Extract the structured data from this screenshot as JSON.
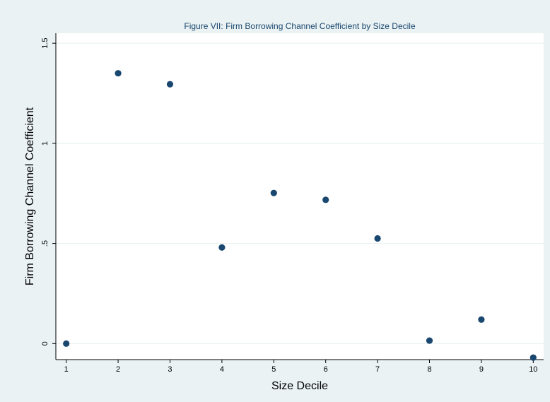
{
  "chart_data": {
    "type": "scatter",
    "title": "Figure VII: Firm Borrowing Channel Coefficient by Size Decile",
    "xlabel": "Size Decile",
    "ylabel": "Firm Borrowing Channel Coefficient",
    "xlim": [
      0.8,
      10.2
    ],
    "ylim": [
      -0.08,
      1.55
    ],
    "xticks": [
      1,
      2,
      3,
      4,
      5,
      6,
      7,
      8,
      9,
      10
    ],
    "xtick_labels": [
      "1",
      "2",
      "3",
      "4",
      "5",
      "6",
      "7",
      "8",
      "9",
      "10"
    ],
    "yticks": [
      0,
      0.5,
      1,
      1.5
    ],
    "ytick_labels": [
      "0",
      ".5",
      "1",
      "1.5"
    ],
    "grid": true,
    "colors": {
      "marker": "#1a476f",
      "background": "#eaf2f3",
      "plot_area": "#ffffff",
      "title": "#1a476f"
    },
    "x": [
      1,
      2,
      3,
      4,
      5,
      6,
      7,
      8,
      9,
      10
    ],
    "y": [
      0.0,
      1.35,
      1.295,
      0.48,
      0.752,
      0.718,
      0.525,
      0.015,
      0.12,
      -0.07
    ]
  }
}
